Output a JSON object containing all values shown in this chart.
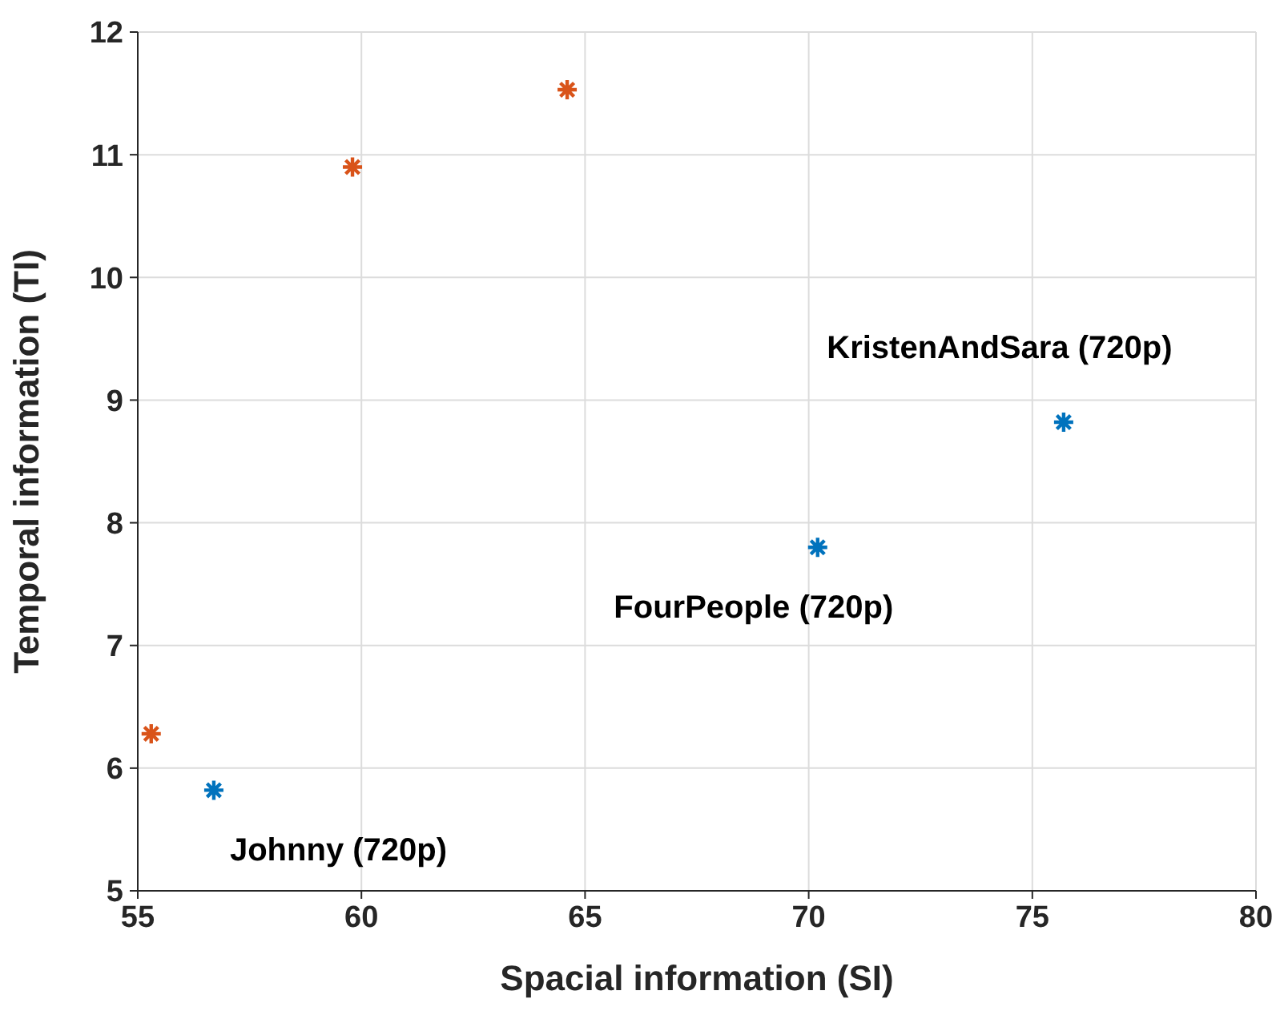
{
  "chart_data": {
    "type": "scatter",
    "xlabel": "Spacial information (SI)",
    "ylabel": "Temporal information (TI)",
    "xlim": [
      55,
      80
    ],
    "xticks": [
      55,
      60,
      65,
      70,
      75,
      80
    ],
    "ylim": [
      5,
      12
    ],
    "yticks": [
      5,
      6,
      7,
      8,
      9,
      10,
      11,
      12
    ],
    "grid": true,
    "marker": "cross",
    "series": [
      {
        "color": "#0072bd",
        "x": [
          56.7,
          70.2,
          75.7
        ],
        "values": [
          5.82,
          7.8,
          8.82
        ]
      },
      {
        "color": "#d95319",
        "x": [
          55.3,
          59.8,
          64.6
        ],
        "values": [
          6.28,
          10.9,
          11.53
        ]
      }
    ],
    "annotations": [
      {
        "text": "Johnny (720p)",
        "x": 56.7,
        "y": 5.82
      },
      {
        "text": "FourPeople (720p)",
        "x": 70.2,
        "y": 7.8
      },
      {
        "text": "KristenAndSara (720p)",
        "x": 75.7,
        "y": 8.82
      }
    ]
  }
}
